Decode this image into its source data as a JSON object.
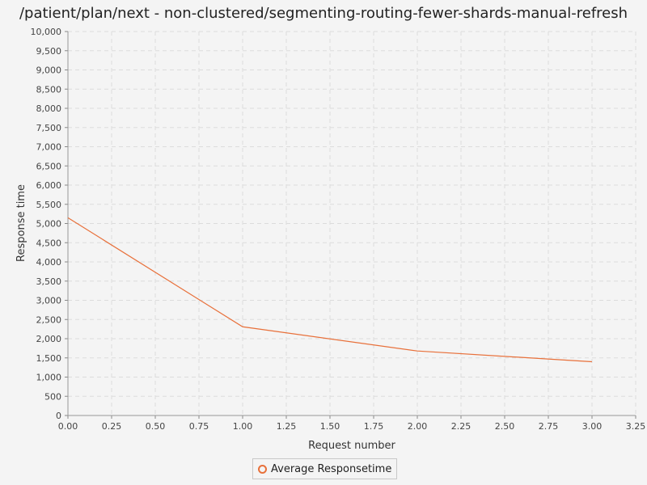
{
  "chart_data": {
    "type": "line",
    "title": "/patient/plan/next - non-clustered/segmenting-routing-fewer-shards-manual-refresh",
    "xlabel": "Request number",
    "ylabel": "Response time",
    "xlim": [
      0,
      3.25
    ],
    "ylim": [
      0,
      10000
    ],
    "x_ticks": [
      "0.00",
      "0.25",
      "0.50",
      "0.75",
      "1.00",
      "1.25",
      "1.50",
      "1.75",
      "2.00",
      "2.25",
      "2.50",
      "2.75",
      "3.00",
      "3.25"
    ],
    "y_ticks": [
      "0",
      "500",
      "1,000",
      "1,500",
      "2,000",
      "2,500",
      "3,000",
      "3,500",
      "4,000",
      "4,500",
      "5,000",
      "5,500",
      "6,000",
      "6,500",
      "7,000",
      "7,500",
      "8,000",
      "8,500",
      "9,000",
      "9,500",
      "10,000"
    ],
    "grid": true,
    "legend_position": "bottom-center",
    "series": [
      {
        "name": "Average Responsetime",
        "color": "#e8703a",
        "x": [
          0,
          1,
          2,
          3
        ],
        "y": [
          5150,
          2310,
          1680,
          1400
        ]
      }
    ]
  }
}
